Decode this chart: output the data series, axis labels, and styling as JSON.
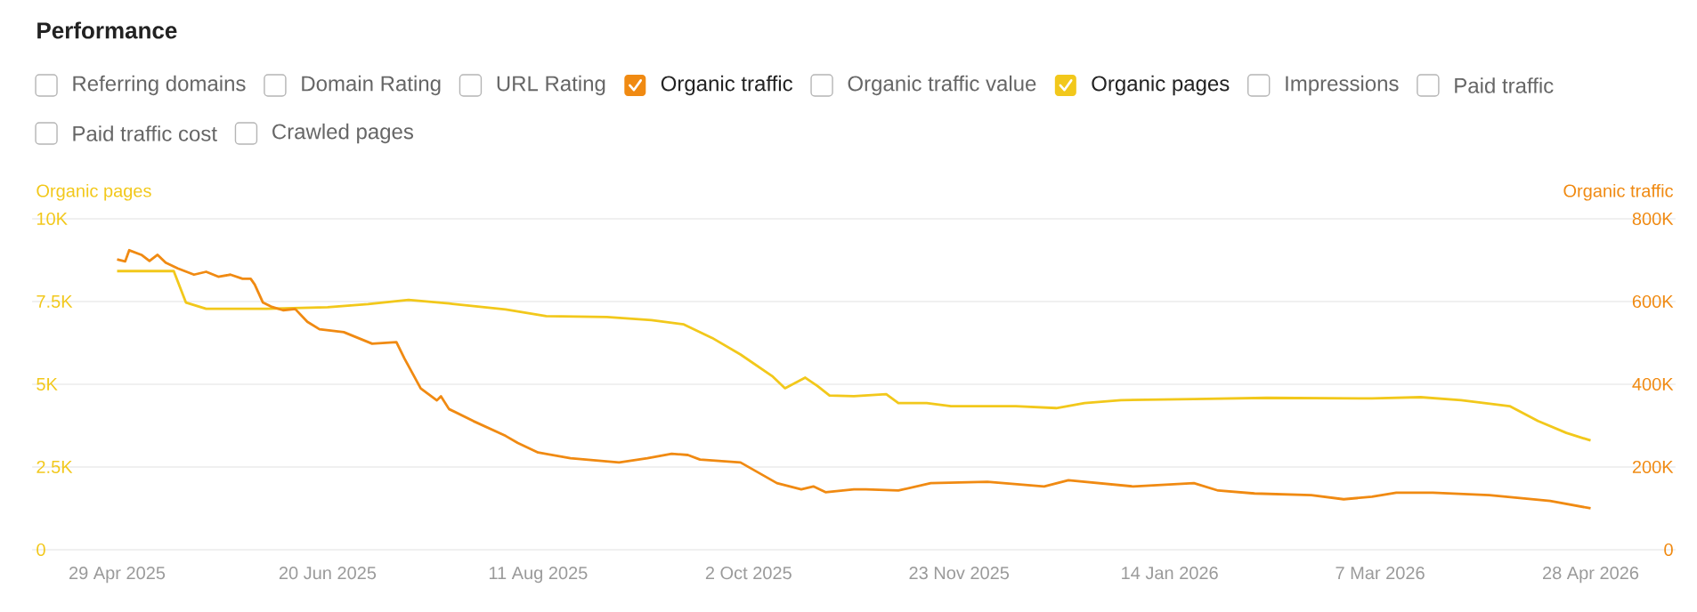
{
  "chart_data": {
    "type": "line",
    "title": "Performance",
    "annotations": [
      "Referring domains",
      "Domain Rating",
      "URL Rating",
      "Organic traffic value",
      "Impressions",
      "Paid traffic",
      "Paid traffic cost",
      "Crawled pages"
    ],
    "ylabel": "Organic pages",
    "y2label": "Organic traffic",
    "xlim": [
      "2025-04-08",
      "2026-05-19"
    ],
    "xticks": [
      {
        "value": "2025-04-29",
        "label": "29 Apr 2025"
      },
      {
        "value": "2025-06-20",
        "label": "20 Jun 2025"
      },
      {
        "value": "2025-08-11",
        "label": "11 Aug 2025"
      },
      {
        "value": "2025-10-02",
        "label": "2 Oct 2025"
      },
      {
        "value": "2025-11-23",
        "label": "23 Nov 2025"
      },
      {
        "value": "2026-01-14",
        "label": "14 Jan 2026"
      },
      {
        "value": "2026-03-07",
        "label": "7 Mar 2026"
      },
      {
        "value": "2026-04-28",
        "label": "28 Apr 2026"
      }
    ],
    "ylim": [
      0,
      10000
    ],
    "yticks": [
      0,
      {
        "value": 2500,
        "label": "2.5K"
      },
      {
        "value": 5000,
        "label": "5K"
      },
      {
        "value": 7500,
        "label": "7.5K"
      },
      {
        "value": 10000,
        "label": "10K"
      }
    ],
    "y2lim": [
      0,
      800000
    ],
    "y2ticks": [
      0,
      {
        "value": 200000,
        "label": "200K"
      },
      {
        "value": 400000,
        "label": "400K"
      },
      {
        "value": 600000,
        "label": "600K"
      },
      {
        "value": 800000,
        "label": "800K"
      }
    ],
    "grid": "y",
    "legend": "top",
    "series": [
      {
        "name": "Organic traffic",
        "color": "#f08a12",
        "axis": "y2",
        "x": [
          "2025-04-29",
          "2025-05-01",
          "2025-05-02",
          "2025-05-05",
          "2025-05-07",
          "2025-05-09",
          "2025-05-11",
          "2025-05-14",
          "2025-05-18",
          "2025-05-21",
          "2025-05-24",
          "2025-05-27",
          "2025-05-30",
          "2025-06-01",
          "2025-06-02",
          "2025-06-04",
          "2025-06-06",
          "2025-06-09",
          "2025-06-12",
          "2025-06-15",
          "2025-06-18",
          "2025-06-24",
          "2025-07-01",
          "2025-07-07",
          "2025-07-09",
          "2025-07-13",
          "2025-07-17",
          "2025-07-18",
          "2025-07-20",
          "2025-07-26",
          "2025-08-03",
          "2025-08-06",
          "2025-08-11",
          "2025-08-19",
          "2025-08-31",
          "2025-09-07",
          "2025-09-13",
          "2025-09-17",
          "2025-09-20",
          "2025-09-30",
          "2025-10-09",
          "2025-10-15",
          "2025-10-18",
          "2025-10-21",
          "2025-10-28",
          "2025-10-31",
          "2025-11-08",
          "2025-11-16",
          "2025-11-30",
          "2025-12-14",
          "2025-12-20",
          "2026-01-05",
          "2026-01-20",
          "2026-01-26",
          "2026-02-04",
          "2026-02-18",
          "2026-02-26",
          "2026-03-05",
          "2026-03-11",
          "2026-03-20",
          "2026-04-03",
          "2026-04-18",
          "2026-04-28"
        ],
        "values": [
          702000,
          697000,
          724000,
          713000,
          698000,
          713000,
          694000,
          680000,
          665000,
          672000,
          660000,
          665000,
          655000,
          655000,
          641000,
          598000,
          588000,
          579000,
          582000,
          551000,
          533000,
          526000,
          498000,
          502000,
          462000,
          390000,
          361000,
          371000,
          340000,
          311000,
          275000,
          258000,
          235000,
          221000,
          211000,
          221000,
          232000,
          229000,
          218000,
          211000,
          161000,
          146000,
          153000,
          139000,
          146000,
          146000,
          143000,
          161000,
          164000,
          153000,
          168000,
          153000,
          161000,
          143000,
          136000,
          132000,
          122000,
          128000,
          138000,
          138000,
          132000,
          118000,
          100000
        ]
      },
      {
        "name": "Organic pages",
        "color": "#f2c81b",
        "x": [
          "2025-04-29",
          "2025-05-13",
          "2025-05-16",
          "2025-05-21",
          "2025-06-05",
          "2025-06-20",
          "2025-06-30",
          "2025-07-10",
          "2025-07-20",
          "2025-08-03",
          "2025-08-13",
          "2025-08-28",
          "2025-09-08",
          "2025-09-16",
          "2025-09-23",
          "2025-09-30",
          "2025-10-08",
          "2025-10-11",
          "2025-10-16",
          "2025-10-19",
          "2025-10-22",
          "2025-10-28",
          "2025-11-05",
          "2025-11-08",
          "2025-11-15",
          "2025-11-21",
          "2025-12-07",
          "2025-12-17",
          "2025-12-24",
          "2026-01-02",
          "2026-01-20",
          "2026-02-07",
          "2026-03-05",
          "2026-03-17",
          "2026-03-27",
          "2026-04-08",
          "2026-04-15",
          "2026-04-22",
          "2026-04-28"
        ],
        "values": [
          8420,
          8420,
          7470,
          7280,
          7280,
          7330,
          7420,
          7550,
          7440,
          7260,
          7060,
          7030,
          6940,
          6810,
          6400,
          5900,
          5230,
          4880,
          5200,
          4950,
          4660,
          4640,
          4700,
          4430,
          4430,
          4340,
          4340,
          4280,
          4430,
          4520,
          4550,
          4590,
          4570,
          4610,
          4520,
          4340,
          3890,
          3530,
          3300
        ]
      }
    ]
  }
}
